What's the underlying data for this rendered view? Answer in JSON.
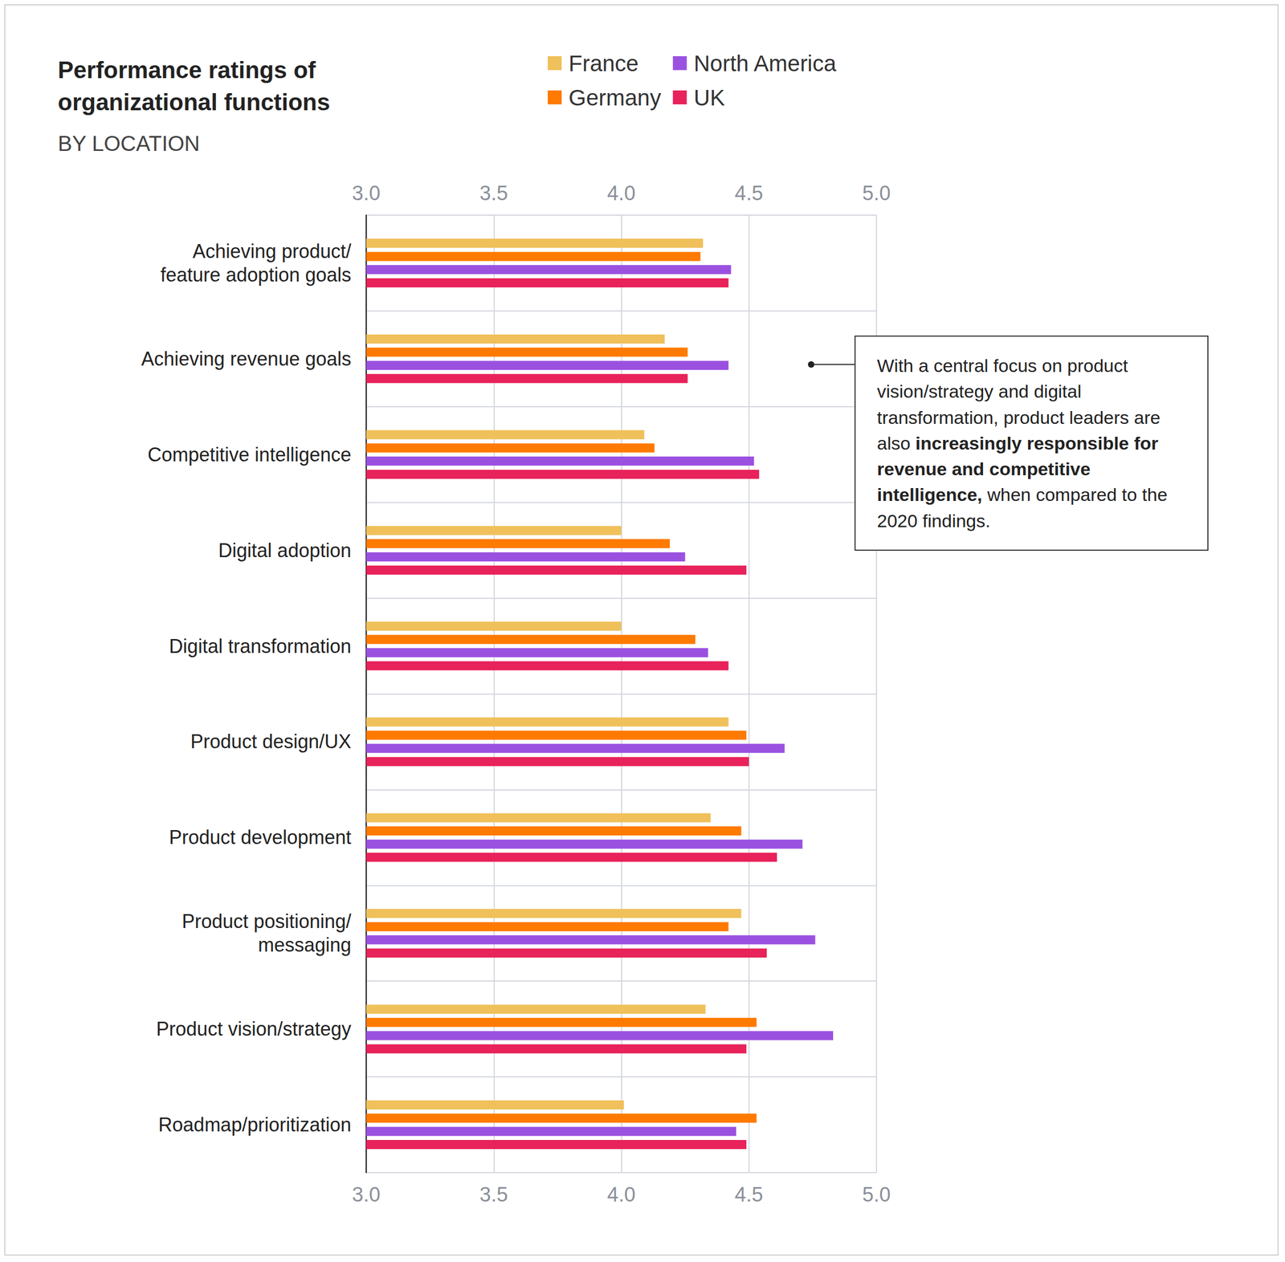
{
  "chart_data": {
    "type": "bar",
    "orientation": "horizontal",
    "title": "Performance ratings of organizational functions",
    "subtitle": "BY LOCATION",
    "categories": [
      "Achieving product/\nfeature adoption goals",
      "Achieving revenue goals",
      "Competitive intelligence",
      "Digital adoption",
      "Digital transformation",
      "Product design/UX",
      "Product development",
      "Product positioning/\nmessaging",
      "Product vision/strategy",
      "Roadmap/prioritization"
    ],
    "series": [
      {
        "name": "France",
        "color": "#f0c05a",
        "values": [
          4.32,
          4.17,
          4.09,
          4.0,
          4.0,
          4.42,
          4.35,
          4.47,
          4.33,
          4.01
        ]
      },
      {
        "name": "Germany",
        "color": "#ff7a00",
        "values": [
          4.31,
          4.26,
          4.13,
          4.19,
          4.29,
          4.49,
          4.47,
          4.42,
          4.53,
          4.53
        ]
      },
      {
        "name": "North America",
        "color": "#9b51e0",
        "values": [
          4.43,
          4.42,
          4.52,
          4.25,
          4.34,
          4.64,
          4.71,
          4.76,
          4.83,
          4.45
        ]
      },
      {
        "name": "UK",
        "color": "#e8225a",
        "values": [
          4.42,
          4.26,
          4.54,
          4.49,
          4.42,
          4.5,
          4.61,
          4.57,
          4.49,
          4.49
        ]
      }
    ],
    "xlim": [
      3,
      5
    ],
    "xticks": [
      {
        "value": 3,
        "label": "3.0"
      },
      3.5,
      {
        "value": 4,
        "label": "4.0"
      },
      4.5,
      {
        "value": 5,
        "label": "5.0"
      }
    ],
    "grid": true,
    "legend": "top",
    "annotation": [
      {
        "text": "With a central focus on product vision/strategy and digital transformation, product leaders are also ",
        "bold": false
      },
      {
        "text": "increasingly responsible for revenue and competitive intelligence,",
        "bold": true
      },
      {
        "text": " when compared to the 2020 findings.",
        "bold": false
      }
    ]
  }
}
